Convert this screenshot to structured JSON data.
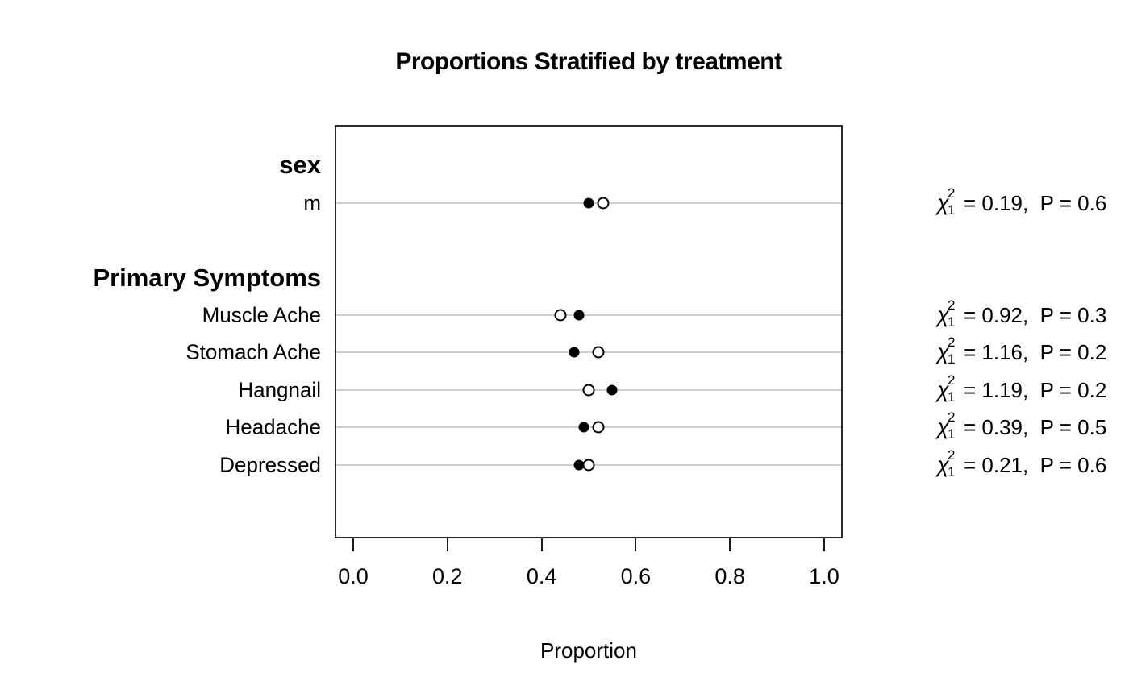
{
  "title": "Proportions Stratified by treatment",
  "xlabel": "Proportion",
  "colors": {
    "point_filled": "#000000",
    "point_open_stroke": "#000000",
    "gridline": "#cfcfcf",
    "box_border": "#2b2b2b",
    "text": "#000000"
  },
  "chart_data": {
    "type": "scatter",
    "subtype": "dot-chart-two-groups",
    "title": "Proportions Stratified by treatment",
    "xlabel": "Proportion",
    "xlim": [
      0.0,
      1.0
    ],
    "x_ticks": [
      "0.0",
      "0.2",
      "0.4",
      "0.6",
      "0.8",
      "1.0"
    ],
    "grid": "per-category-horizontal-reference-lines",
    "marker_series": [
      {
        "name": "treatment-group-filled",
        "marker": "filled-circle"
      },
      {
        "name": "treatment-group-open",
        "marker": "open-circle"
      }
    ],
    "stat_symbol": "χ",
    "stat_sup": "2",
    "stat_sub": "1",
    "groups": [
      {
        "header": "sex",
        "items": [
          {
            "label": "m",
            "filled": 0.5,
            "open": 0.53,
            "stat_chi": "0.19",
            "stat_p": "0.6"
          }
        ]
      },
      {
        "header": "Primary Symptoms",
        "items": [
          {
            "label": "Muscle Ache",
            "filled": 0.48,
            "open": 0.44,
            "stat_chi": "0.92",
            "stat_p": "0.3"
          },
          {
            "label": "Stomach Ache",
            "filled": 0.47,
            "open": 0.52,
            "stat_chi": "1.16",
            "stat_p": "0.2"
          },
          {
            "label": "Hangnail",
            "filled": 0.55,
            "open": 0.5,
            "stat_chi": "1.19",
            "stat_p": "0.2"
          },
          {
            "label": "Headache",
            "filled": 0.49,
            "open": 0.52,
            "stat_chi": "0.39",
            "stat_p": "0.5"
          },
          {
            "label": "Depressed",
            "filled": 0.48,
            "open": 0.5,
            "stat_chi": "0.21",
            "stat_p": "0.6"
          }
        ]
      }
    ],
    "notes": "Right-edge chi-square / P-value annotations are clipped by the image border; only the leading P digit is visible."
  }
}
